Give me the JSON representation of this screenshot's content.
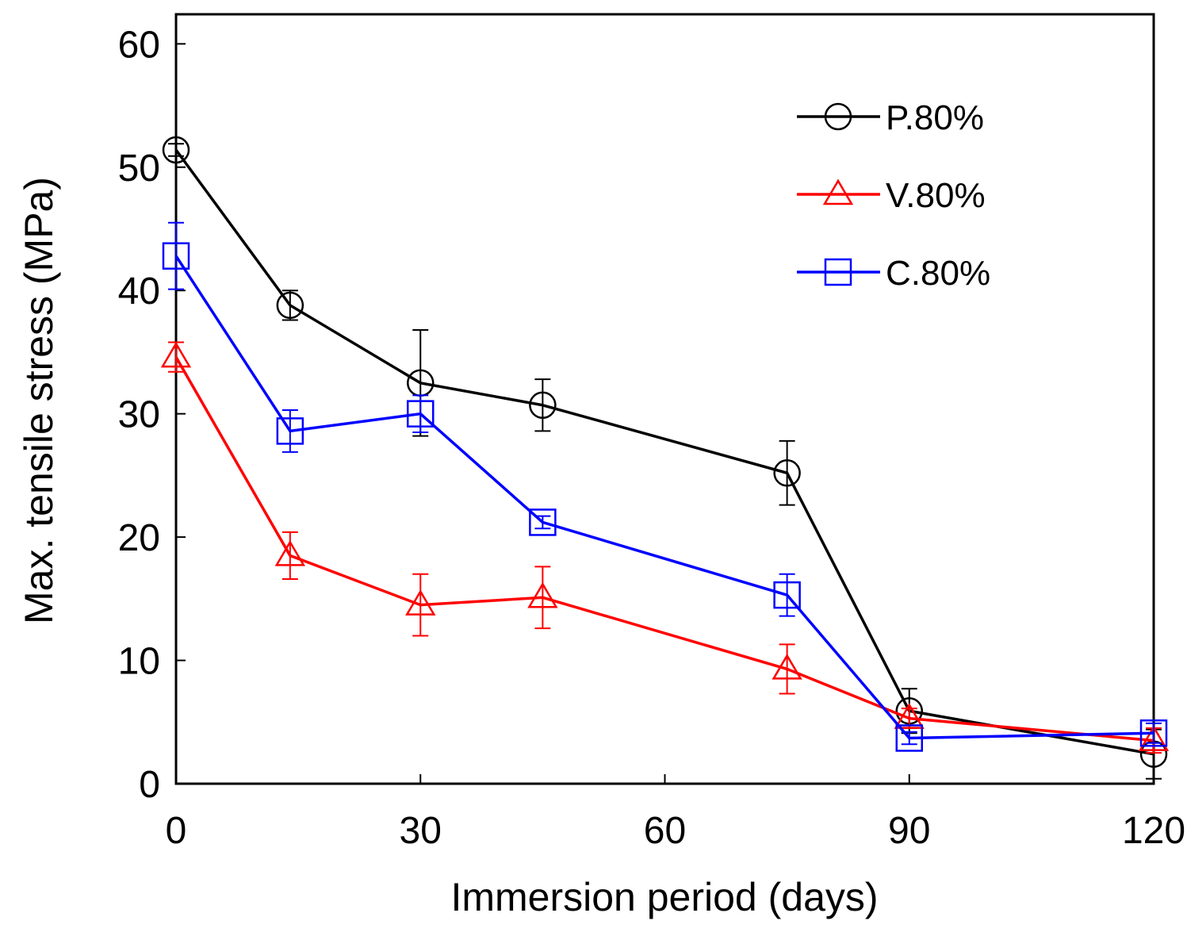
{
  "chart_data": {
    "type": "line",
    "title": "",
    "xlabel": "Immersion period (days)",
    "ylabel": "Max. tensile stress (MPa)",
    "xlim": [
      0,
      120
    ],
    "ylim": [
      0,
      62.4
    ],
    "xticks": [
      0,
      30,
      60,
      90,
      120
    ],
    "yticks": [
      0,
      10,
      20,
      30,
      40,
      50,
      60
    ],
    "grid": false,
    "legend_position": "top-right",
    "x": [
      0,
      14,
      30,
      45,
      75,
      90,
      120
    ],
    "series": [
      {
        "name": "P.80%",
        "color": "#000000",
        "marker": "circle",
        "values": [
          51.4,
          38.8,
          32.5,
          30.7,
          25.2,
          5.9,
          2.4
        ],
        "errors": [
          0.5,
          1.2,
          4.3,
          2.1,
          2.6,
          1.8,
          2.0
        ]
      },
      {
        "name": "V.80%",
        "color": "#ff0000",
        "marker": "triangle",
        "values": [
          34.6,
          18.5,
          14.5,
          15.1,
          9.3,
          5.3,
          3.5
        ],
        "errors": [
          1.2,
          1.9,
          2.5,
          2.5,
          2.0,
          0.8,
          1.0
        ]
      },
      {
        "name": "C.80%",
        "color": "#0000ff",
        "marker": "square",
        "values": [
          42.8,
          28.6,
          30.0,
          21.2,
          15.3,
          3.7,
          4.1
        ],
        "errors": [
          2.7,
          1.7,
          1.5,
          0.5,
          1.7,
          0.5,
          0.8
        ]
      }
    ]
  }
}
